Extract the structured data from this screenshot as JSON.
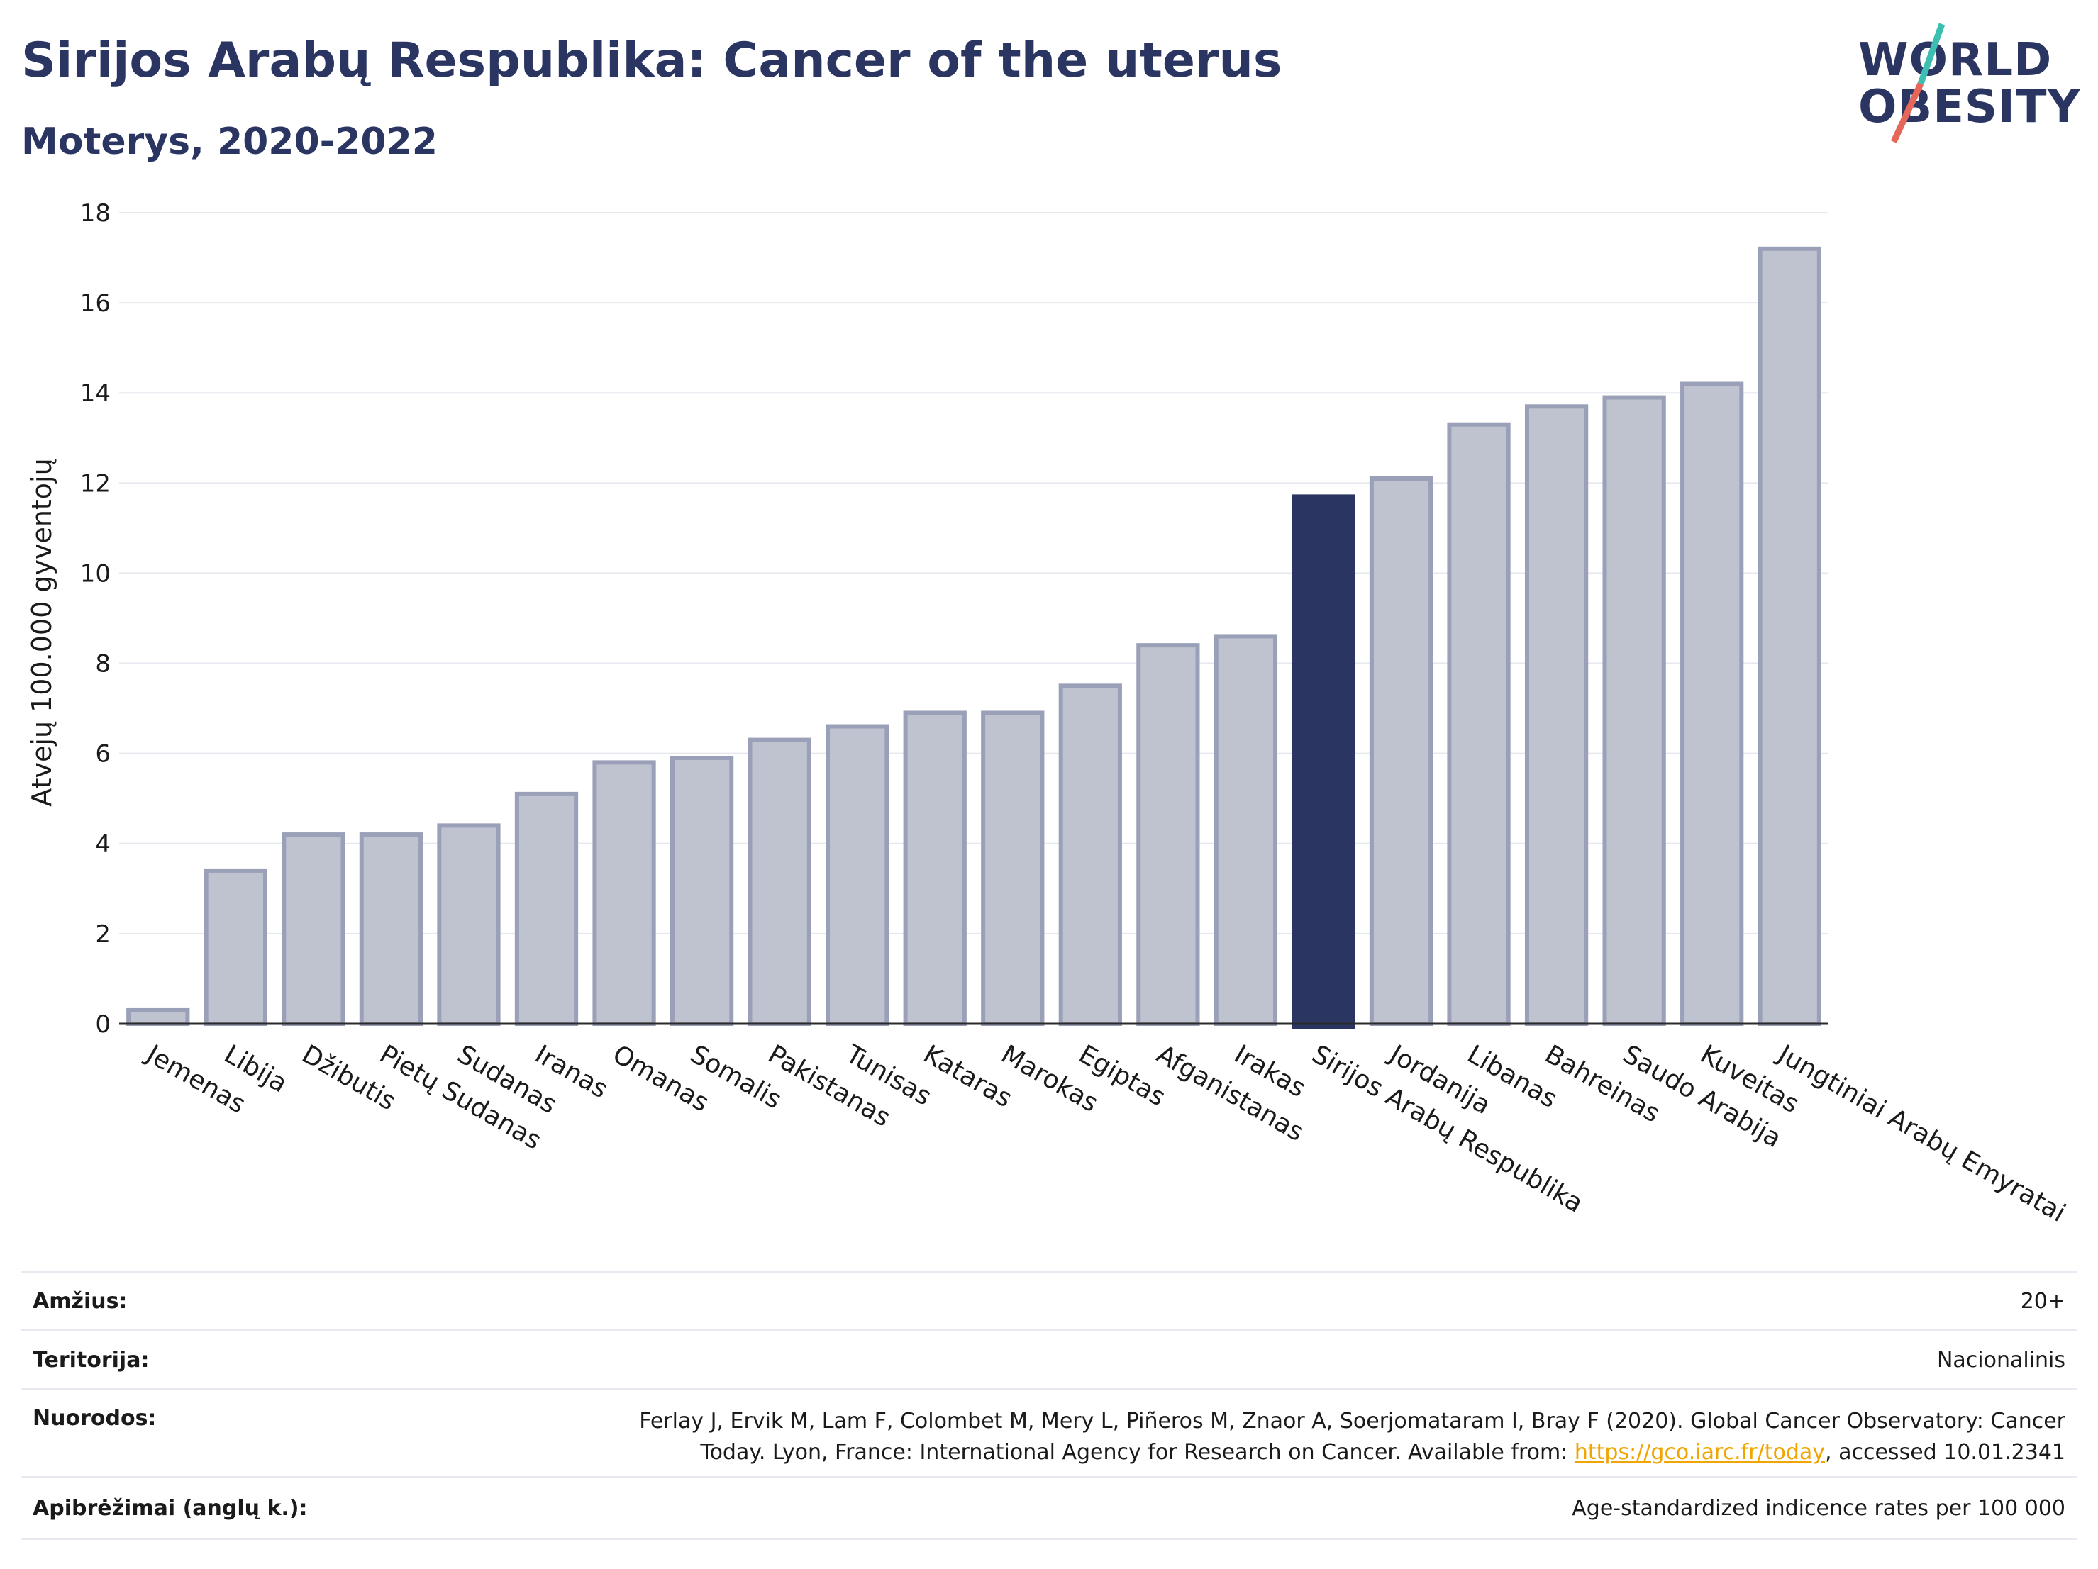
{
  "header": {
    "title": "Sirijos Arabų Respublika: Cancer of the uterus",
    "subtitle": "Moterys, 2020-2022"
  },
  "logo": {
    "line1": "WORLD",
    "line2": "OBESITY",
    "accent_teal": "#3cbfb0",
    "accent_red": "#e5675a"
  },
  "colors": {
    "bar_default": "#bfc3d0",
    "bar_default_stroke": "#9aa0b8",
    "bar_highlight": "#2b3561",
    "title": "#2b3561",
    "grid": "#e6e8ef"
  },
  "chart_data": {
    "type": "bar",
    "title": "Sirijos Arabų Respublika: Cancer of the uterus",
    "subtitle": "Moterys, 2020-2022",
    "ylabel": "Atvejų 100.000 gyventojų",
    "xlabel": "",
    "ylim": [
      0,
      18
    ],
    "yticks": [
      0,
      2,
      4,
      6,
      8,
      10,
      12,
      14,
      16,
      18
    ],
    "grid": true,
    "highlight": "Sirijos Arabų Respublika",
    "categories": [
      "Jemenas",
      "Libija",
      "Džibutis",
      "Pietų Sudanas",
      "Sudanas",
      "Iranas",
      "Omanas",
      "Somalis",
      "Pakistanas",
      "Tunisas",
      "Kataras",
      "Marokas",
      "Egiptas",
      "Afganistanas",
      "Irakas",
      "Sirijos Arabų Respublika",
      "Jordanija",
      "Libanas",
      "Bahreinas",
      "Saudo Arabija",
      "Kuveitas",
      "Jungtiniai Arabų Emyratai"
    ],
    "values": [
      0.3,
      3.4,
      4.2,
      4.2,
      4.4,
      5.1,
      5.8,
      5.9,
      6.3,
      6.6,
      6.9,
      6.9,
      7.5,
      8.4,
      8.6,
      11.7,
      12.1,
      13.3,
      13.7,
      13.9,
      14.2,
      17.2
    ]
  },
  "footer": {
    "rows": [
      {
        "label": "Amžius:",
        "value": "20+"
      },
      {
        "label": "Teritorija:",
        "value": "Nacionalinis"
      },
      {
        "label": "Nuorodos:",
        "value_line1": "Ferlay J, Ervik M, Lam F, Colombet M, Mery L, Piñeros M, Znaor A, Soerjomataram I, Bray F (2020). Global Cancer Observatory: Cancer",
        "value_line2_pre": "Today. Lyon, France: International Agency for Research on Cancer. Available from: ",
        "link": "https://gco.iarc.fr/today",
        "value_line2_post": ", accessed 10.01.2341"
      },
      {
        "label": "Apibrėžimai (anglų k.):",
        "value": "Age-standardized indicence rates per 100 000"
      }
    ]
  }
}
